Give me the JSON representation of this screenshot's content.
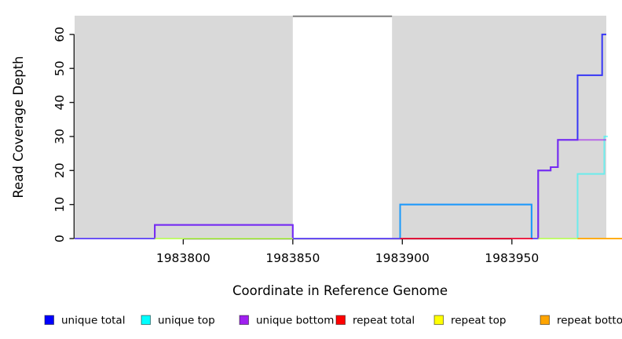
{
  "figure": {
    "bg": "#ffffff"
  },
  "chart_data": {
    "type": "line",
    "subtype": "step-coverage-plot",
    "title": "",
    "xlabel": "Coordinate in Reference Genome",
    "ylabel": "Read Coverage Depth",
    "x_ticks": [
      1983800,
      1983850,
      1983900,
      1983950
    ],
    "y_ticks": [
      0,
      10,
      20,
      30,
      40,
      50,
      60
    ],
    "xlim": [
      1983750.4,
      1983993.1
    ],
    "ylim": [
      0,
      65.5
    ],
    "grid": false,
    "legend_position": "bottom",
    "plot_bg": "#ffffff",
    "shaded_region_color": "#d9d9d9",
    "shaded_regions": [
      {
        "x0": 1983750.4,
        "x1": 1983850.0
      },
      {
        "x0": 1983895.3,
        "x1": 1983993.1
      }
    ],
    "offscale_segment": {
      "x0": 1983850.0,
      "x1": 1983895.3,
      "color": "#7f7f7f"
    },
    "series": [
      {
        "name": "unique total",
        "color": "#0000ff",
        "opacity": 0.75,
        "segments": [
          [
            [
              1983750.4,
              0
            ],
            [
              1983787,
              0
            ],
            [
              1983787,
              4
            ],
            [
              1983850,
              4
            ],
            [
              1983850,
              0
            ],
            [
              1983899,
              0
            ],
            [
              1983899,
              10
            ],
            [
              1983959,
              10
            ],
            [
              1983959,
              0
            ],
            [
              1983962,
              0
            ],
            [
              1983962,
              20
            ],
            [
              1983967.7,
              20
            ],
            [
              1983967.7,
              21
            ],
            [
              1983971,
              21
            ],
            [
              1983971,
              29
            ],
            [
              1983980,
              29
            ],
            [
              1983980,
              48
            ],
            [
              1983991.2,
              48
            ],
            [
              1983991.2,
              60
            ],
            [
              1983993.1,
              60
            ]
          ]
        ]
      },
      {
        "name": "unique top",
        "color": "#00ffff",
        "opacity": 0.5,
        "segments": [
          [
            [
              1983750.4,
              0
            ],
            [
              1983899,
              0
            ],
            [
              1983899,
              10
            ],
            [
              1983959,
              10
            ],
            [
              1983959,
              0
            ],
            [
              1983980,
              0
            ],
            [
              1983980,
              19
            ],
            [
              1983992.2,
              19
            ],
            [
              1983992.2,
              30
            ],
            [
              1983993.8,
              30
            ]
          ]
        ]
      },
      {
        "name": "unique bottom",
        "color": "#a020f0",
        "opacity": 0.6,
        "segments": [
          [
            [
              1983750.4,
              0
            ],
            [
              1983787,
              0
            ],
            [
              1983787,
              4
            ],
            [
              1983850,
              4
            ],
            [
              1983850,
              0
            ],
            [
              1983962,
              0
            ],
            [
              1983962,
              20
            ],
            [
              1983967.7,
              20
            ],
            [
              1983967.7,
              21
            ],
            [
              1983971,
              21
            ],
            [
              1983971,
              29
            ],
            [
              1983993.1,
              29
            ]
          ]
        ]
      },
      {
        "name": "repeat total",
        "color": "#ff0000",
        "opacity": 0.7,
        "segments": [
          [
            [
              1983899,
              0
            ],
            [
              1983959.5,
              0
            ]
          ]
        ]
      },
      {
        "name": "repeat top",
        "color": "#ffff00",
        "opacity": 0.55,
        "segments": [
          [
            [
              1983787,
              0
            ],
            [
              1983850,
              0
            ]
          ],
          [
            [
              1983962,
              0
            ],
            [
              1983980,
              0
            ]
          ]
        ]
      },
      {
        "name": "repeat bottom",
        "color": "#ffa500",
        "opacity": 0.9,
        "segments": [
          [
            [
              1983980,
              0
            ],
            [
              1984000.5,
              0
            ]
          ]
        ]
      }
    ],
    "legend": [
      {
        "label": "unique total",
        "color": "#0000ff"
      },
      {
        "label": "unique top",
        "color": "#00ffff"
      },
      {
        "label": "unique bottom",
        "color": "#a020f0"
      },
      {
        "label": "repeat total",
        "color": "#ff0000"
      },
      {
        "label": "repeat top",
        "color": "#ffff00"
      },
      {
        "label": "repeat bottom",
        "color": "#ffa500"
      }
    ]
  }
}
